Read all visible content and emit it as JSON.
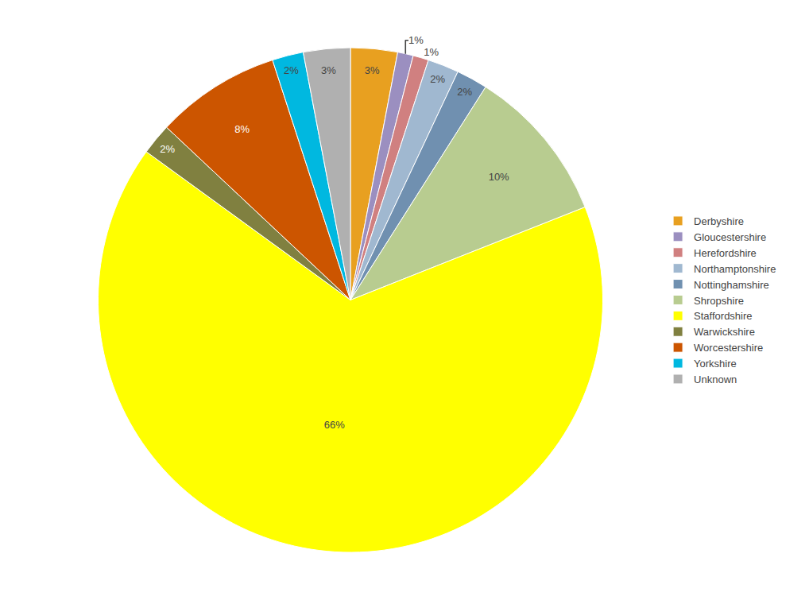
{
  "chart_data": {
    "type": "pie",
    "categories": [
      "Derbyshire",
      "Gloucestershire",
      "Herefordshire",
      "Northamptonshire",
      "Nottinghamshire",
      "Shropshire",
      "Staffordshire",
      "Warwickshire",
      "Worcestershire",
      "Yorkshire",
      "Unknown"
    ],
    "values": [
      3,
      1,
      1,
      2,
      2,
      10,
      66,
      2,
      8,
      2,
      3
    ],
    "value_labels": [
      "3%",
      "1%",
      "1%",
      "2%",
      "2%",
      "10%",
      "66%",
      "2%",
      "8%",
      "2%",
      "3%"
    ],
    "colors": [
      "#E8A020",
      "#9B8FC0",
      "#D08080",
      "#A0B8D0",
      "#7090B0",
      "#B8CC90",
      "#FFFF00",
      "#808040",
      "#CC5500",
      "#00B8E0",
      "#B0B0B0"
    ],
    "data_labels": true,
    "legend": "right"
  }
}
